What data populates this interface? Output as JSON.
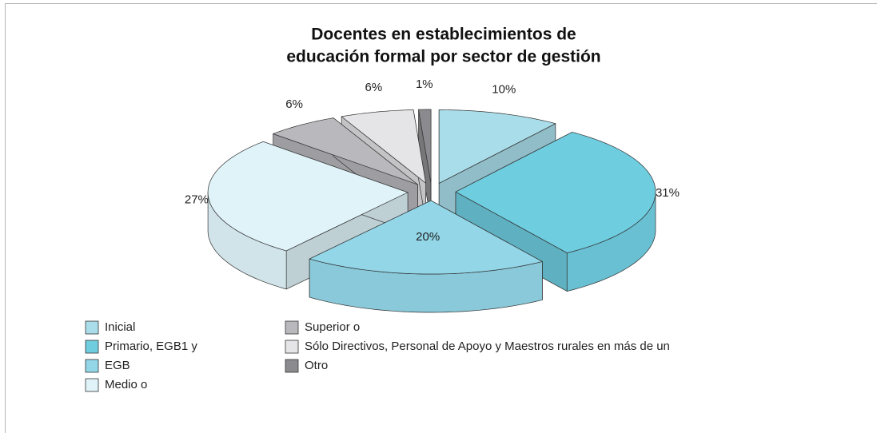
{
  "chart_data": {
    "type": "pie3d",
    "title": [
      "Docentes en establecimientos de",
      "educación formal por sector de gestión"
    ],
    "categories": [
      "Inicial",
      "Primario, EGB1 y",
      "EGB",
      "Medio o",
      "Superior o",
      "Sólo Directivos, Personal de Apoyo y Maestros rurales en más de un",
      "Otro"
    ],
    "values": [
      10,
      31,
      20,
      27,
      6,
      6,
      1
    ],
    "value_labels": [
      "10%",
      "31%",
      "20%",
      "27%",
      "6%",
      "6%",
      "1%"
    ],
    "colors": [
      "#a9dde9",
      "#6fcde0",
      "#92d6e8",
      "#dff3f8",
      "#b9b9bd",
      "#e5e5e7",
      "#8b8b8f"
    ],
    "legend": "bottom-left"
  }
}
